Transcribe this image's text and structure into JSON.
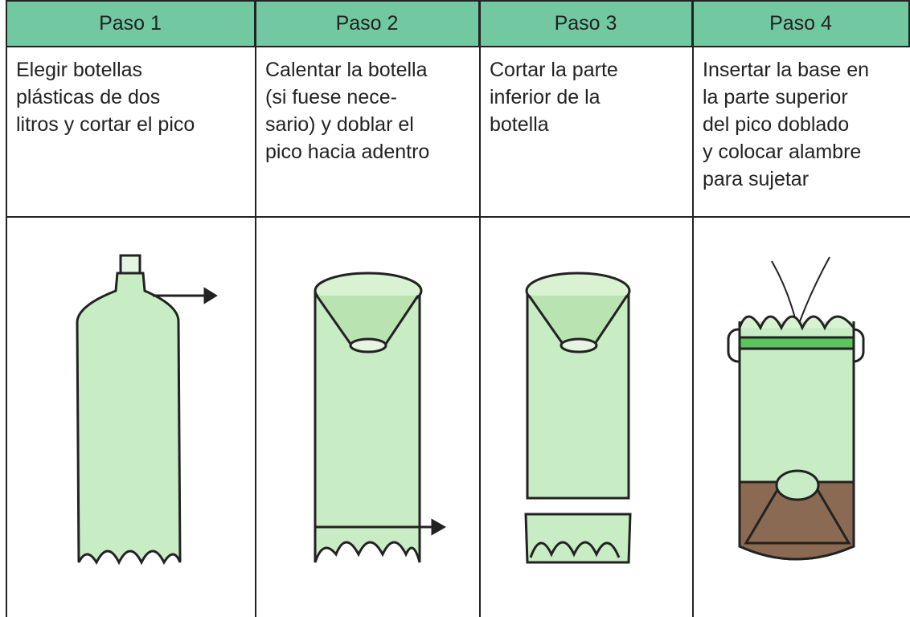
{
  "table": {
    "headers": [
      "Paso 1",
      "Paso 2",
      "Paso 3",
      "Paso 4"
    ],
    "rows": [
      [
        {
          "lines": [
            "Elegir botellas",
            "plásticas de dos",
            "litros y cortar el pico"
          ]
        },
        {
          "lines": [
            "Calentar la botella",
            "(si fuese nece-",
            "sario) y doblar el",
            "pico hacia adentro"
          ]
        },
        {
          "lines": [
            "Cortar la parte",
            "inferior de la",
            "botella"
          ]
        },
        {
          "lines": [
            "Insertar la base en",
            "la parte superior",
            "del pico doblado",
            "y colocar alambre",
            "para sujetar"
          ]
        }
      ]
    ]
  }
}
